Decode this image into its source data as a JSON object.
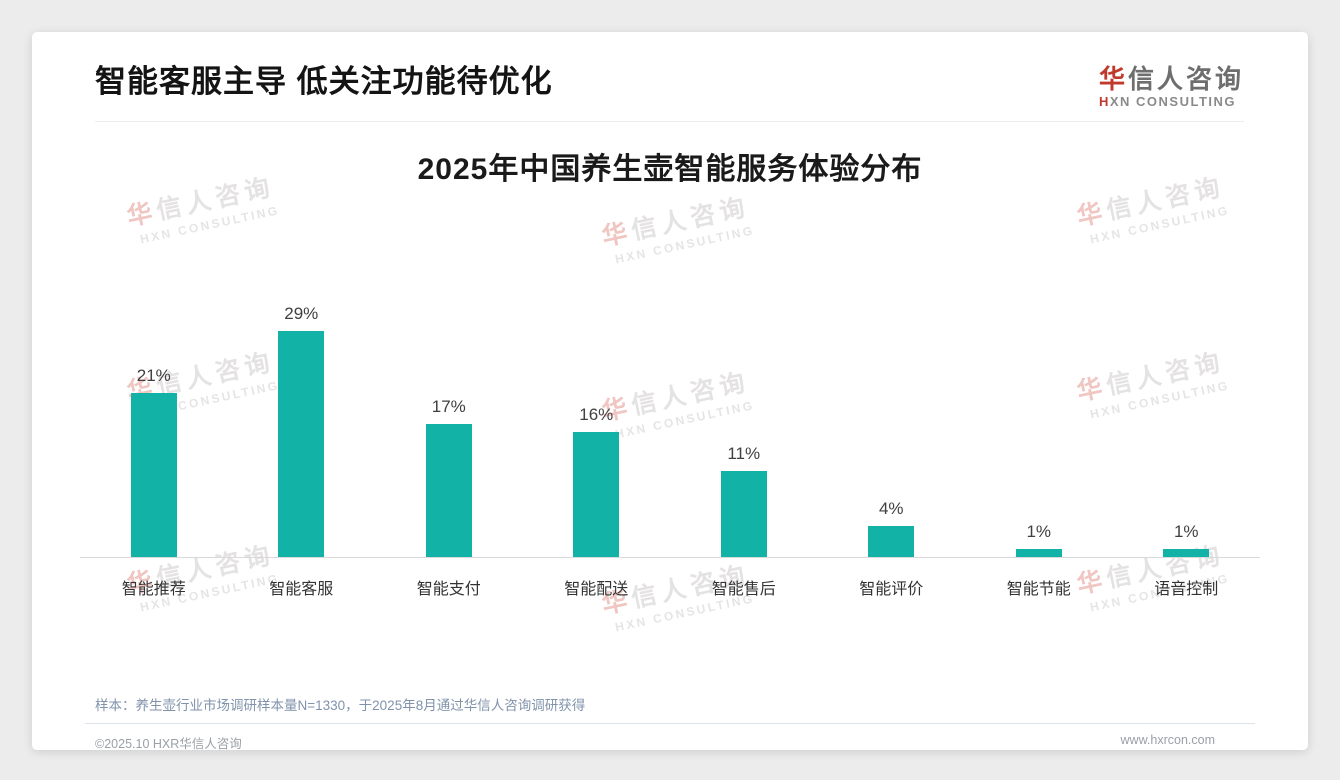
{
  "page": {
    "title": "智能客服主导 低关注功能待优化",
    "logo": {
      "cn_first": "华",
      "cn_rest": "信人咨询",
      "en_first": "H",
      "en_rest": "XN CONSULTING"
    },
    "watermark": {
      "cn_first": "华",
      "cn_rest": "信人咨询",
      "en": "HXN CONSULTING"
    },
    "sample_note": "样本：养生壶行业市场调研样本量N=1330，于2025年8月通过华信人咨询调研获得",
    "footer": {
      "left": "©2025.10 HXR华信人咨询",
      "right": "www.hxrcon.com"
    }
  },
  "chart_data": {
    "type": "bar",
    "title": "2025年中国养生壶智能服务体验分布",
    "categories": [
      "智能推荐",
      "智能客服",
      "智能支付",
      "智能配送",
      "智能售后",
      "智能评价",
      "智能节能",
      "语音控制"
    ],
    "values": [
      21,
      29,
      17,
      16,
      11,
      4,
      1,
      1
    ],
    "value_labels": [
      "21%",
      "29%",
      "17%",
      "16%",
      "11%",
      "4%",
      "1%",
      "1%"
    ],
    "unit": "%",
    "bar_color": "#12b2a7",
    "ylim": [
      0,
      30
    ],
    "grid": false,
    "legend": false,
    "xlabel": "",
    "ylabel": ""
  }
}
